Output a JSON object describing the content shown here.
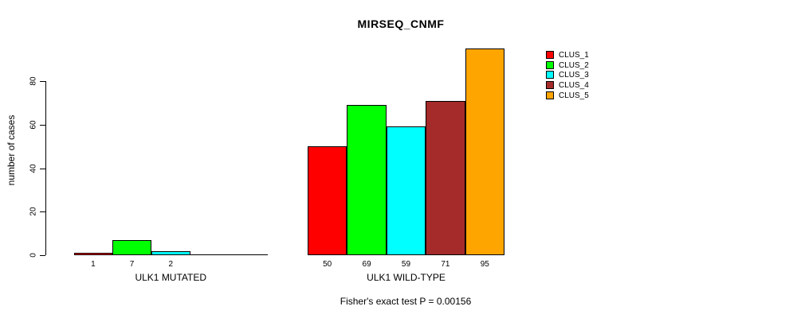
{
  "title": "MIRSEQ_CNMF",
  "y_axis": {
    "label": "number of cases",
    "ticks": [
      0,
      20,
      40,
      60,
      80
    ]
  },
  "annotation": "Fisher's exact test P = 0.00156",
  "legend": {
    "items": [
      {
        "label": "CLUS_1",
        "color": "#FF0000"
      },
      {
        "label": "CLUS_2",
        "color": "#00FF00"
      },
      {
        "label": "CLUS_3",
        "color": "#00FFFF"
      },
      {
        "label": "CLUS_4",
        "color": "#A52A2A"
      },
      {
        "label": "CLUS_5",
        "color": "#FFA500"
      }
    ]
  },
  "chart_data": {
    "type": "bar",
    "title": "MIRSEQ_CNMF",
    "ylabel": "number of cases",
    "xlabel": "",
    "ylim": [
      0,
      95
    ],
    "yticks": [
      0,
      20,
      40,
      60,
      80
    ],
    "grid": false,
    "legend_position": "right",
    "categories": [
      "ULK1 MUTATED",
      "ULK1 WILD-TYPE"
    ],
    "series": [
      {
        "name": "CLUS_1",
        "color": "#FF0000",
        "values": [
          1,
          50
        ]
      },
      {
        "name": "CLUS_2",
        "color": "#00FF00",
        "values": [
          7,
          69
        ]
      },
      {
        "name": "CLUS_3",
        "color": "#00FFFF",
        "values": [
          2,
          59
        ]
      },
      {
        "name": "CLUS_4",
        "color": "#A52A2A",
        "values": [
          0,
          71
        ]
      },
      {
        "name": "CLUS_5",
        "color": "#FFA500",
        "values": [
          0,
          95
        ]
      }
    ],
    "bar_labels": [
      [
        "1",
        "7",
        "2",
        "",
        ""
      ],
      [
        "50",
        "69",
        "59",
        "71",
        "95"
      ]
    ],
    "annotation": "Fisher's exact test P = 0.00156"
  }
}
